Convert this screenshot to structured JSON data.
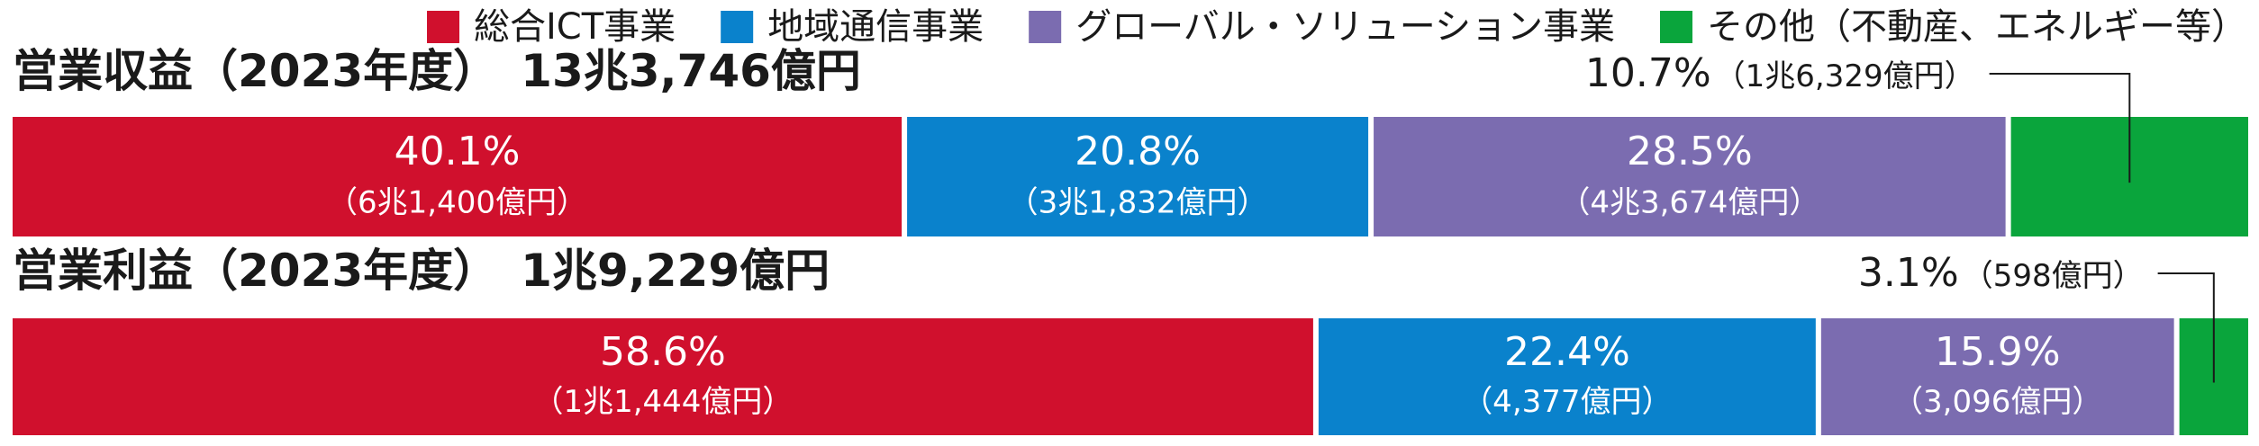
{
  "chart_data": {
    "type": "bar",
    "orientation": "stacked-horizontal-100",
    "legend_placement": "top-right",
    "grid": false,
    "series": [
      {
        "name": "総合ICT事業",
        "color": "#d0102d"
      },
      {
        "name": "地域通信事業",
        "color": "#0a82cc"
      },
      {
        "name": "グローバル・ソリューション事業",
        "color": "#7b6cb0"
      },
      {
        "name": "その他（不動産、エネルギー等）",
        "color": "#0aa53c"
      }
    ],
    "rows": [
      {
        "title": "営業収益（2023年度）　13兆3,746億円",
        "segments": [
          {
            "value": 40.1,
            "pct_label": "40.1%",
            "amount_label": "（6兆1,400億円）"
          },
          {
            "value": 20.8,
            "pct_label": "20.8%",
            "amount_label": "（3兆1,832億円）"
          },
          {
            "value": 28.5,
            "pct_label": "28.5%",
            "amount_label": "（4兆3,674億円）"
          },
          {
            "value": 10.7,
            "pct_label": "10.7%",
            "amount_label": "（1兆6,329億円）"
          }
        ]
      },
      {
        "title": "営業利益（2023年度）　1兆9,229億円",
        "segments": [
          {
            "value": 58.6,
            "pct_label": "58.6%",
            "amount_label": "（1兆1,444億円）"
          },
          {
            "value": 22.4,
            "pct_label": "22.4%",
            "amount_label": "（4,377億円）"
          },
          {
            "value": 15.9,
            "pct_label": "15.9%",
            "amount_label": "（3,096億円）"
          },
          {
            "value": 3.1,
            "pct_label": "3.1%",
            "amount_label": "（598億円）"
          }
        ]
      }
    ]
  }
}
